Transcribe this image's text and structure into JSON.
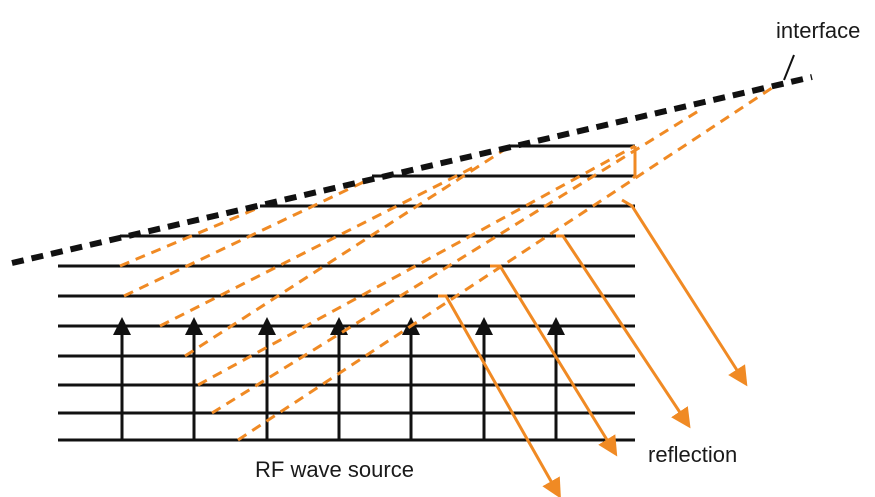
{
  "labels": {
    "interface": "interface",
    "source": "RF wave source",
    "reflection": "reflection"
  },
  "colors": {
    "lines": "#111111",
    "interface": "#111111",
    "reflected": "#f08a24",
    "text": "#1a1a1a"
  }
}
